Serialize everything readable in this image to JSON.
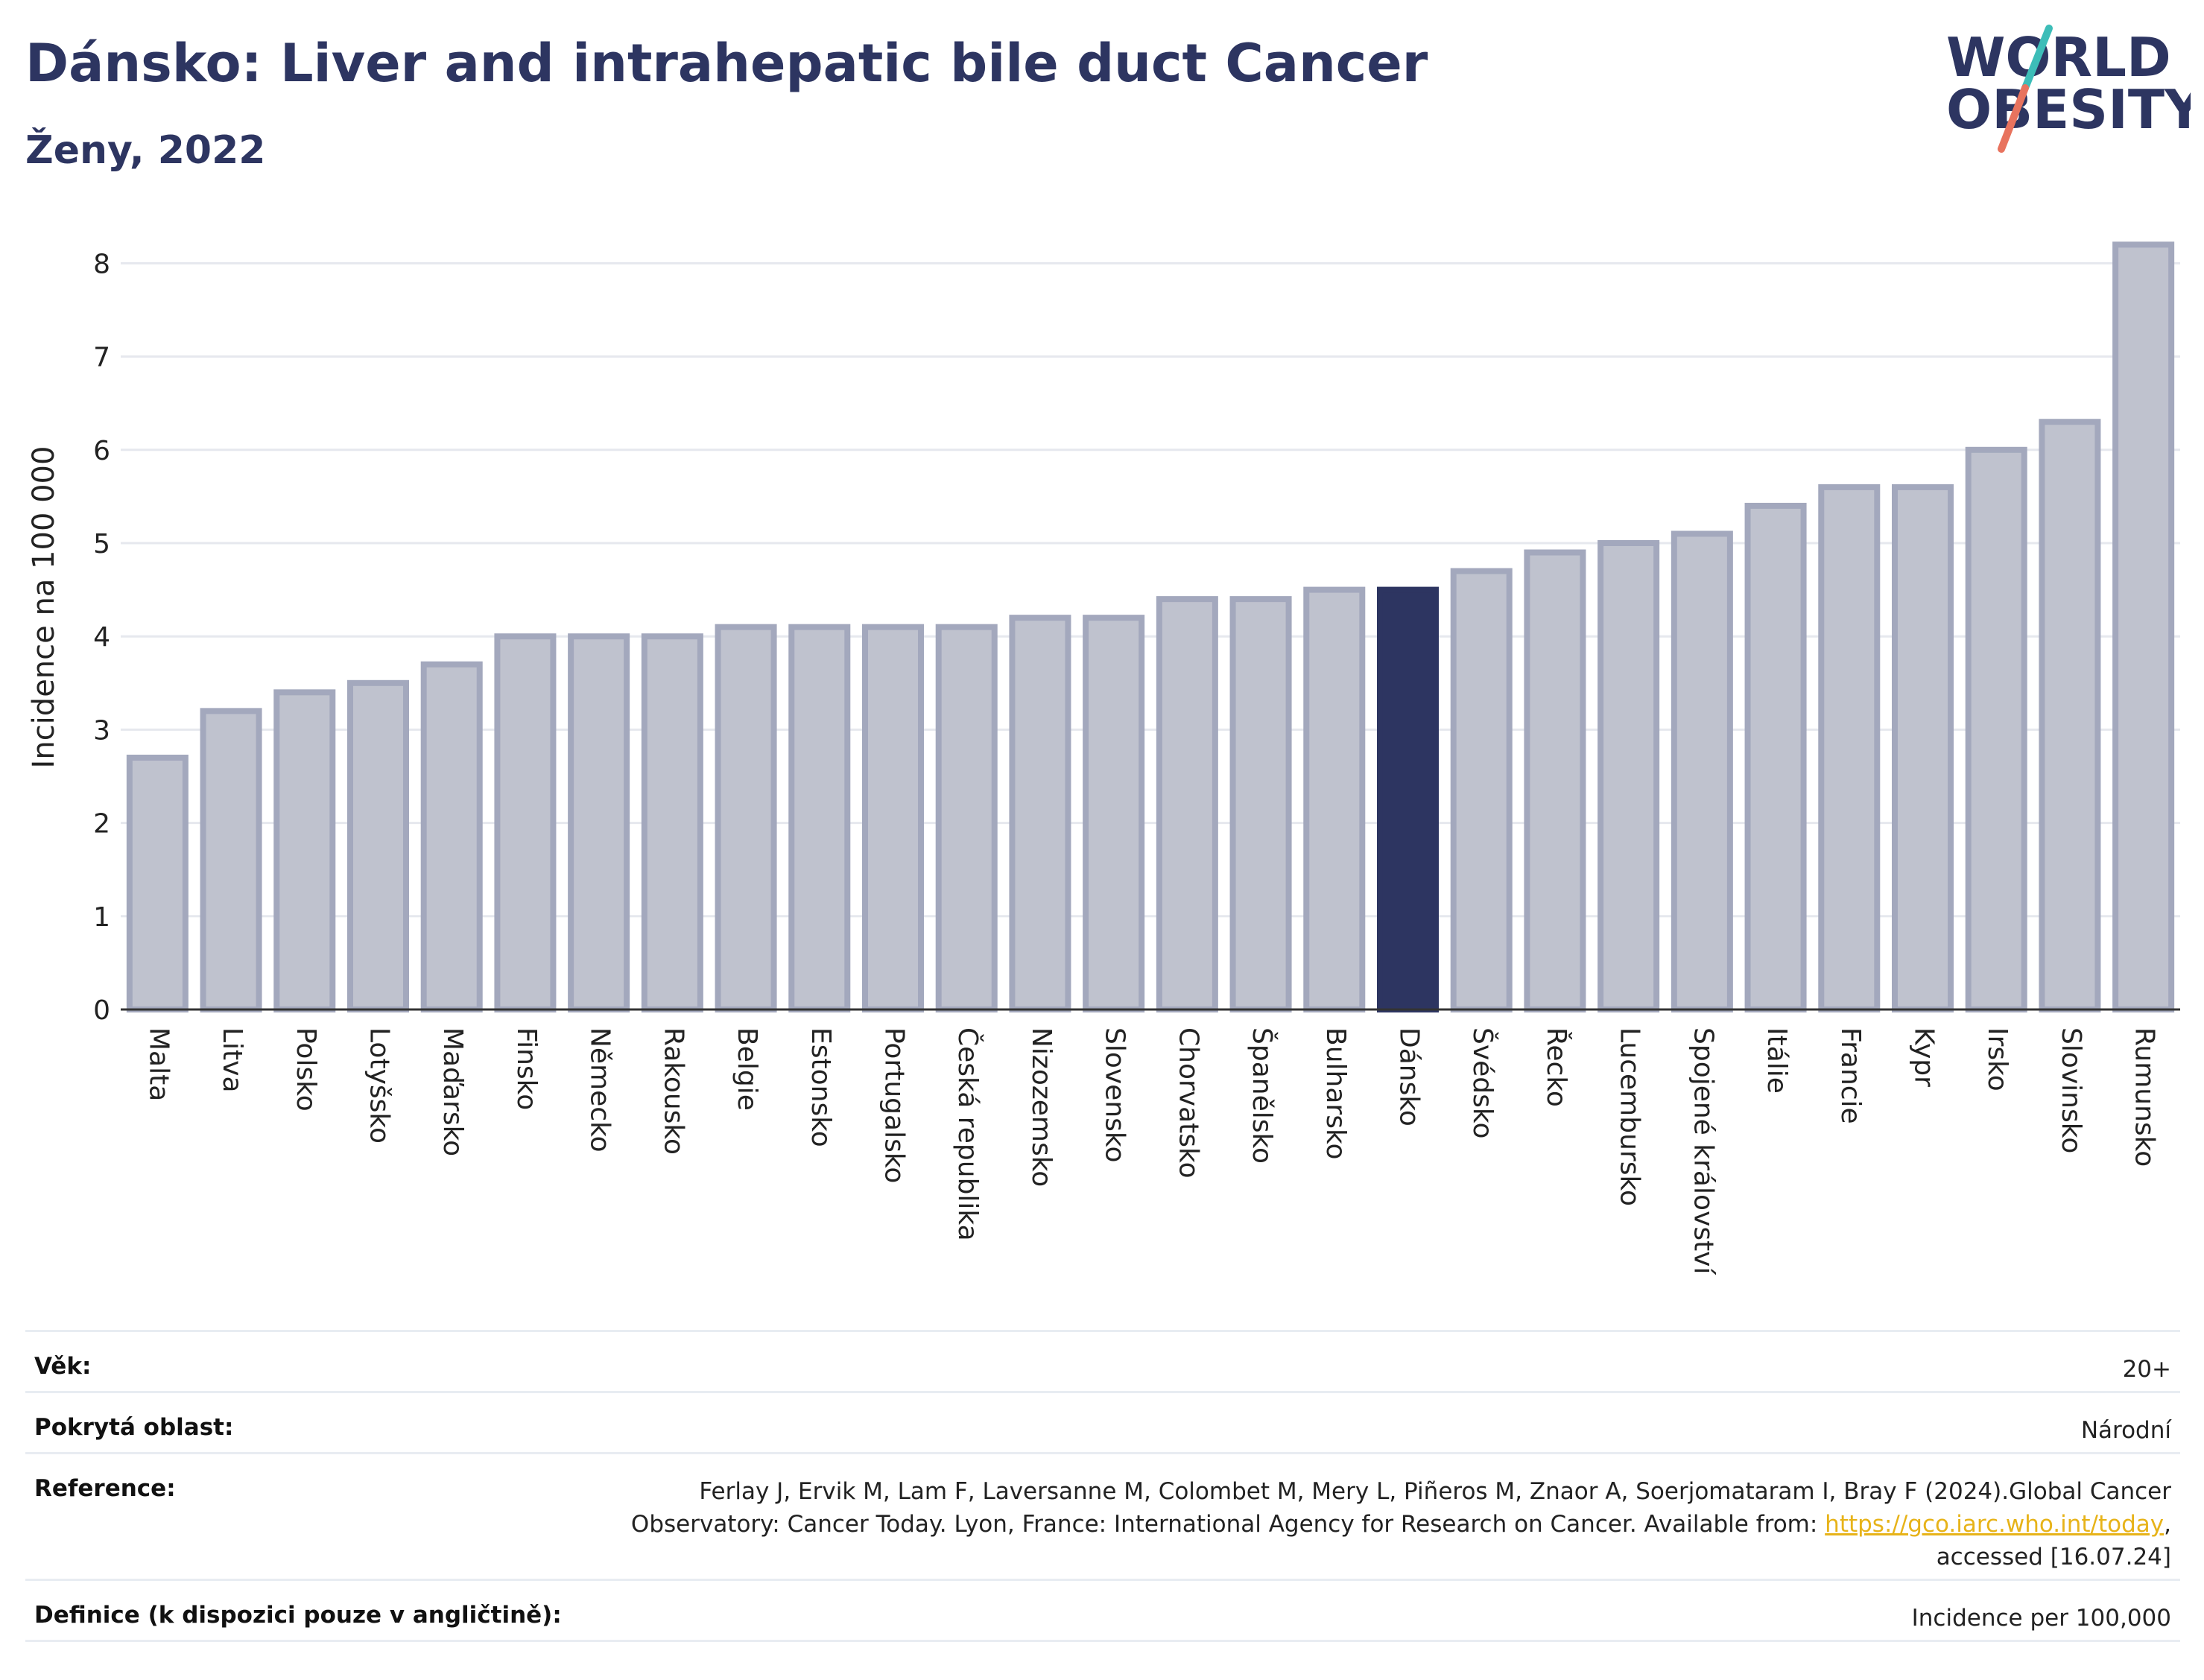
{
  "header": {
    "title": "Dánsko: Liver and intrahepatic bile duct Cancer",
    "subtitle": "Ženy, 2022"
  },
  "logo": {
    "line1": "WORLD",
    "line2": "OBESITY",
    "slash_colors": [
      "#3dbdb8",
      "#e8735e"
    ]
  },
  "colors": {
    "bar": "#bfc2ce",
    "bar_border": "#a3a8bd",
    "highlight": "#2d3561",
    "text": "#2d3561",
    "link": "#e7b319"
  },
  "chart_data": {
    "type": "bar",
    "ylabel": "Incidence na 100 000",
    "ylim": [
      0,
      8.4
    ],
    "yticks": [
      0,
      1,
      2,
      3,
      4,
      5,
      6,
      7,
      8
    ],
    "grid": true,
    "highlight_category": "Dánsko",
    "categories": [
      "Malta",
      "Litva",
      "Polsko",
      "Lotyšsko",
      "Maďarsko",
      "Finsko",
      "Německo",
      "Rakousko",
      "Belgie",
      "Estonsko",
      "Portugalsko",
      "Česká republika",
      "Nizozemsko",
      "Slovensko",
      "Chorvatsko",
      "Španělsko",
      "Bulharsko",
      "Dánsko",
      "Švédsko",
      "Řecko",
      "Lucembursko",
      "Spojené království",
      "Itálie",
      "Francie",
      "Kypr",
      "Irsko",
      "Slovinsko",
      "Rumunsko"
    ],
    "values": [
      2.7,
      3.2,
      3.4,
      3.5,
      3.7,
      4.0,
      4.0,
      4.0,
      4.1,
      4.1,
      4.1,
      4.1,
      4.2,
      4.2,
      4.4,
      4.4,
      4.5,
      4.5,
      4.7,
      4.9,
      5.0,
      5.1,
      5.4,
      5.6,
      5.6,
      6.0,
      6.3,
      8.2
    ]
  },
  "info": {
    "age_label": "Věk:",
    "age_value": "20+",
    "area_label": "Pokrytá oblast:",
    "area_value": "Národní",
    "reference_label": "Reference:",
    "reference_text_1": "Ferlay J, Ervik M, Lam F, Laversanne M, Colombet M, Mery L, Piñeros M, Znaor A, Soerjomataram I, Bray F (2024).Global Cancer",
    "reference_text_2": "Observatory: Cancer Today. Lyon, France: International Agency for Research on Cancer. Available from: ",
    "reference_link": "https://gco.iarc.who.int/today",
    "reference_text_3": ",",
    "reference_text_4": "accessed [16.07.24]",
    "definition_label": "Definice (k dispozici pouze v angličtině):",
    "definition_value": "Incidence per 100,000"
  }
}
